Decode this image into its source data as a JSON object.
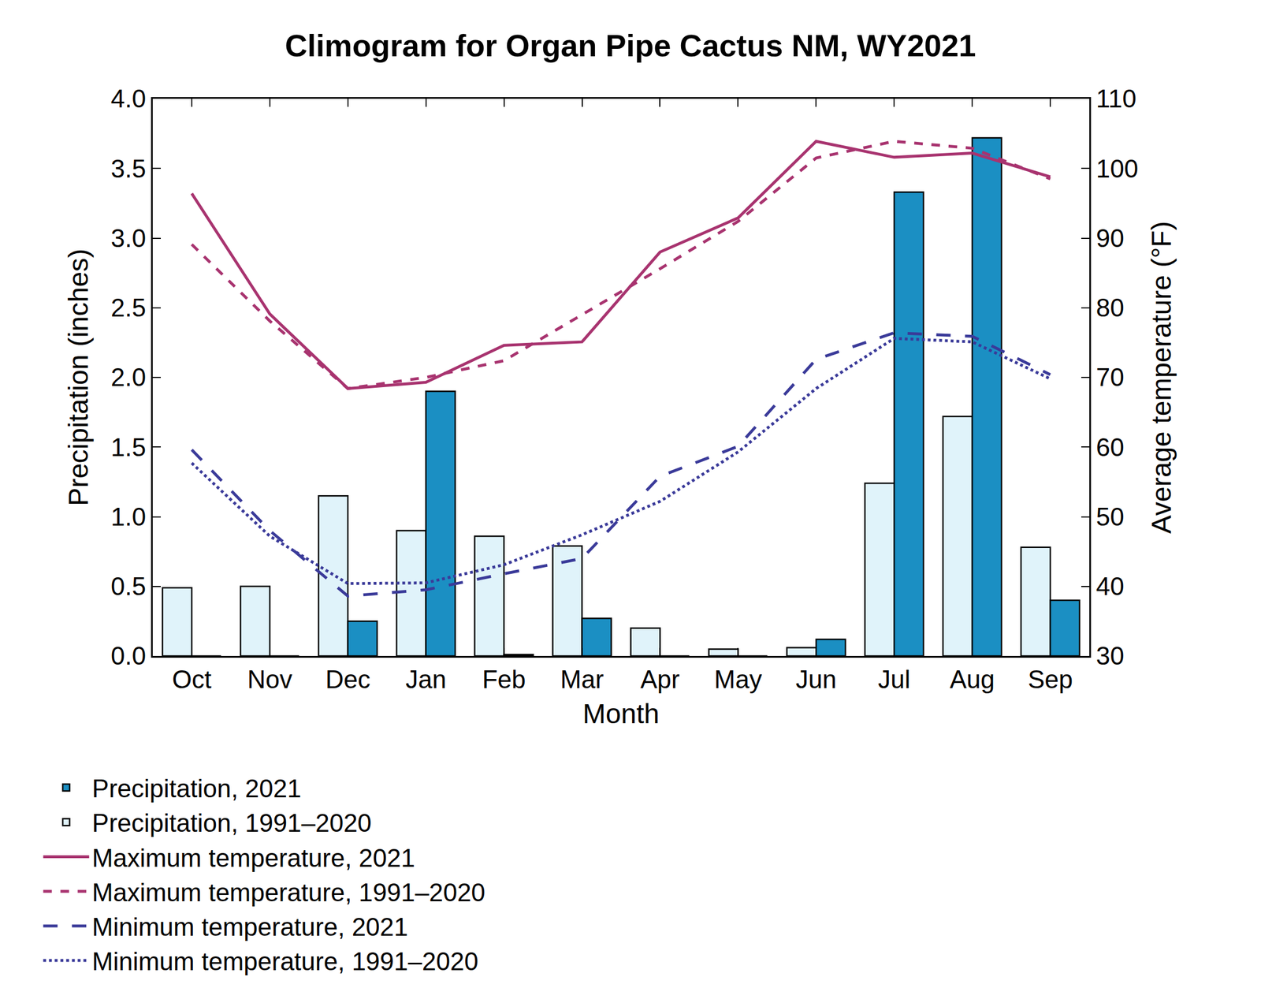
{
  "chart_data": {
    "type": "bar",
    "title": "Climogram for Organ Pipe Cactus NM, WY2021",
    "x_label": "Month",
    "y_label": "Precipitation (inches)",
    "y2_label": "Average temperature (°F)",
    "categories": [
      "Oct",
      "Nov",
      "Dec",
      "Jan",
      "Feb",
      "Mar",
      "Apr",
      "May",
      "Jun",
      "Jul",
      "Aug",
      "Sep"
    ],
    "ylim": [
      0,
      4
    ],
    "yticks": [
      {
        "value": 0,
        "label": "0.0"
      },
      0.5,
      {
        "value": 1,
        "label": "1.0"
      },
      1.5,
      {
        "value": 2,
        "label": "2.0"
      },
      2.5,
      {
        "value": 3,
        "label": "3.0"
      },
      3.5,
      {
        "value": 4,
        "label": "4.0"
      }
    ],
    "y2lim": [
      30,
      110
    ],
    "y2ticks": [
      30,
      40,
      50,
      60,
      70,
      80,
      90,
      100,
      110
    ],
    "grid": false,
    "legend": "bottom",
    "series": [
      {
        "name": "Precipitation, 2021",
        "type": "bar",
        "color": "#1b8fc3",
        "values": [
          0,
          0,
          0.25,
          1.9,
          0.01,
          0.27,
          0,
          0,
          0.12,
          3.33,
          3.72,
          0.4
        ]
      },
      {
        "name": "Precipitation, 1991–2020",
        "type": "bar",
        "color": "#e0f3fa",
        "values": [
          0.49,
          0.5,
          1.15,
          0.9,
          0.86,
          0.79,
          0.2,
          0.05,
          0.06,
          1.24,
          1.72,
          0.78
        ]
      },
      {
        "name": "Maximum temperature, 2021",
        "type": "line",
        "axis": "y2",
        "color": "#a8336f",
        "line_style": "solid",
        "values": [
          96.4,
          79.1,
          68.4,
          69.3,
          74.6,
          75.1,
          88.0,
          92.9,
          103.9,
          101.6,
          102.2,
          98.8
        ]
      },
      {
        "name": "Maximum temperature, 1991–2020",
        "type": "line",
        "axis": "y2",
        "color": "#a8336f",
        "line_style": "dash",
        "values": [
          89.1,
          78.1,
          68.4,
          70.0,
          72.4,
          79.0,
          85.6,
          92.4,
          101.5,
          103.9,
          102.9,
          98.5
        ]
      },
      {
        "name": "Minimum temperature, 2021",
        "type": "line",
        "axis": "y2",
        "color": "#3a3a99",
        "line_style": "longdash",
        "values": [
          59.6,
          48.0,
          38.6,
          39.5,
          41.8,
          44.0,
          55.8,
          60.1,
          72.6,
          76.4,
          75.9,
          70.4
        ]
      },
      {
        "name": "Minimum temperature, 1991–2020",
        "type": "line",
        "axis": "y2",
        "color": "#3a3a99",
        "line_style": "dot",
        "values": [
          57.7,
          47.2,
          40.4,
          40.5,
          43.1,
          47.4,
          52.2,
          59.3,
          68.4,
          75.6,
          75.1,
          69.8
        ]
      }
    ]
  }
}
